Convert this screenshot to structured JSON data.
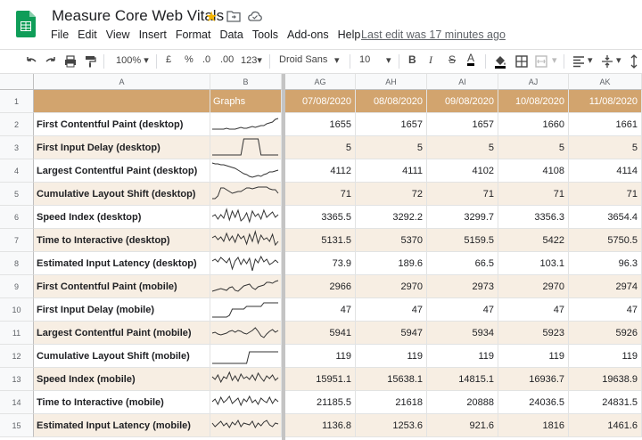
{
  "app": {
    "title": "Measure Core Web Vitals",
    "menus": [
      "File",
      "Edit",
      "View",
      "Insert",
      "Format",
      "Data",
      "Tools",
      "Add-ons",
      "Help"
    ],
    "last_edit": "Last edit was 17 minutes ago"
  },
  "toolbar": {
    "zoom": "100%",
    "currency": "£",
    "percent": "%",
    "decrease_decimal": ".0",
    "increase_decimal": ".00",
    "format_more": "123",
    "font": "Droid Sans",
    "font_size": "10",
    "bold": "B",
    "italic": "I",
    "strikethrough": "S",
    "text_color": "A"
  },
  "sheet": {
    "columns": [
      "A",
      "B",
      "AG",
      "AH",
      "AI",
      "AJ",
      "AK"
    ],
    "header_row": {
      "graphs": "Graphs",
      "dates": [
        "07/08/2020",
        "08/08/2020",
        "09/08/2020",
        "10/08/2020",
        "11/08/2020"
      ]
    },
    "row_numbers": [
      "1",
      "2",
      "3",
      "4",
      "5",
      "6",
      "7",
      "8",
      "9",
      "10",
      "11",
      "12",
      "13",
      "14",
      "15"
    ],
    "rows": [
      {
        "metric": "First Contentful Paint (desktop)",
        "values": [
          "1655",
          "1657",
          "1657",
          "1660",
          "1661"
        ]
      },
      {
        "metric": "First Input Delay (desktop)",
        "values": [
          "5",
          "5",
          "5",
          "5",
          "5"
        ]
      },
      {
        "metric": "Largest Contentful Paint (desktop)",
        "values": [
          "4112",
          "4111",
          "4102",
          "4108",
          "4114"
        ]
      },
      {
        "metric": "Cumulative Layout Shift (desktop)",
        "values": [
          "71",
          "72",
          "71",
          "71",
          "71"
        ]
      },
      {
        "metric": "Speed Index (desktop)",
        "values": [
          "3365.5",
          "3292.2",
          "3299.7",
          "3356.3",
          "3654.4"
        ]
      },
      {
        "metric": "Time to Interactive (desktop)",
        "values": [
          "5131.5",
          "5370",
          "5159.5",
          "5422",
          "5750.5"
        ]
      },
      {
        "metric": "Estimated Input Latency (desktop)",
        "values": [
          "73.9",
          "189.6",
          "66.5",
          "103.1",
          "96.3"
        ]
      },
      {
        "metric": "First Contentful Paint (mobile)",
        "values": [
          "2966",
          "2970",
          "2973",
          "2970",
          "2974"
        ]
      },
      {
        "metric": "First Input Delay (mobile)",
        "values": [
          "47",
          "47",
          "47",
          "47",
          "47"
        ]
      },
      {
        "metric": "Largest Contentful Paint (mobile)",
        "values": [
          "5941",
          "5947",
          "5934",
          "5923",
          "5926"
        ]
      },
      {
        "metric": "Cumulative Layout Shift (mobile)",
        "values": [
          "119",
          "119",
          "119",
          "119",
          "119"
        ]
      },
      {
        "metric": "Speed Index (mobile)",
        "values": [
          "15951.1",
          "15638.1",
          "14815.1",
          "16936.7",
          "19638.9"
        ]
      },
      {
        "metric": "Time to Interactive (mobile)",
        "values": [
          "21185.5",
          "21618",
          "20888",
          "24036.5",
          "24831.5"
        ]
      },
      {
        "metric": "Estimated Input Latency (mobile)",
        "values": [
          "1136.8",
          "1253.6",
          "921.6",
          "1816",
          "1461.6"
        ]
      }
    ]
  },
  "colors": {
    "header_bg": "#d2a46e",
    "band_bg": "#f7eee3",
    "star": "#f4b400",
    "sheets_green": "#0f9d58"
  }
}
